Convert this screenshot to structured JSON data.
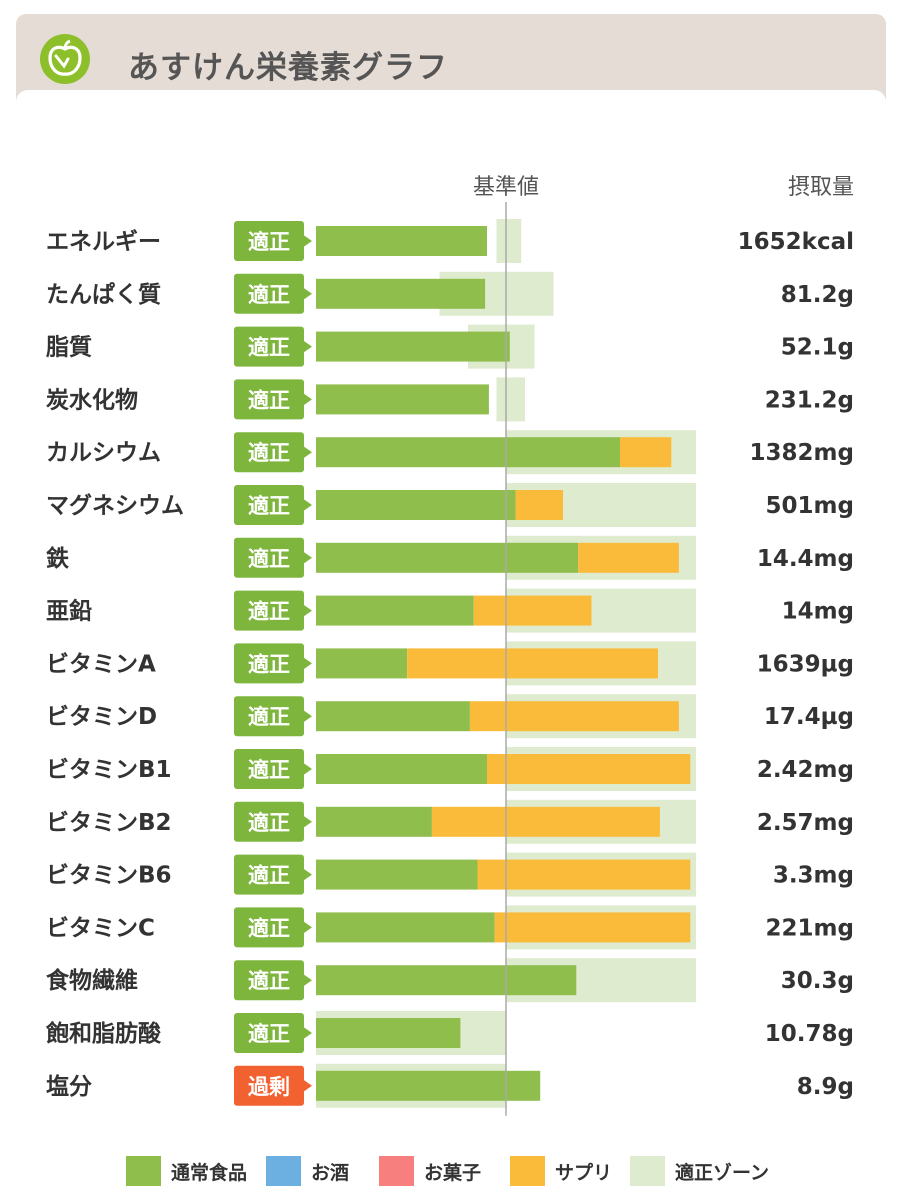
{
  "app": {
    "title": "あすけん栄養素グラフ",
    "logo_icon": "apple-scale-icon"
  },
  "chart_data": {
    "type": "bar",
    "stacked": true,
    "orientation": "horizontal",
    "reference_line_label": "基準値",
    "value_header": "摂取量",
    "categories": [
      "エネルギー",
      "たんぱく質",
      "脂質",
      "炭水化物",
      "カルシウム",
      "マグネシウム",
      "鉄",
      "亜鉛",
      "ビタミンA",
      "ビタミンD",
      "ビタミンB1",
      "ビタミンB2",
      "ビタミンB6",
      "ビタミンC",
      "食物繊維",
      "飽和脂肪酸",
      "塩分"
    ],
    "status": [
      "適正",
      "適正",
      "適正",
      "適正",
      "適正",
      "適正",
      "適正",
      "適正",
      "適正",
      "適正",
      "適正",
      "適正",
      "適正",
      "適正",
      "適正",
      "適正",
      "過剰"
    ],
    "intake": [
      "1652kcal",
      "81.2g",
      "52.1g",
      "231.2g",
      "1382mg",
      "501mg",
      "14.4mg",
      "14mg",
      "1639µg",
      "17.4µg",
      "2.42mg",
      "2.57mg",
      "3.3mg",
      "221mg",
      "30.3g",
      "10.78g",
      "8.9g"
    ],
    "percent_of_standard": {
      "series": [
        {
          "name": "通常食品",
          "values": [
            90,
            89,
            102,
            91,
            160,
            105,
            138,
            83,
            48,
            81,
            90,
            61,
            85,
            94,
            137,
            76,
            118
          ]
        },
        {
          "name": "サプリ",
          "values": [
            0,
            0,
            0,
            0,
            27,
            25,
            53,
            62,
            132,
            110,
            107,
            120,
            112,
            103,
            0,
            0,
            0
          ]
        }
      ],
      "optimal_zone": [
        [
          95,
          108
        ],
        [
          65,
          125
        ],
        [
          80,
          115
        ],
        [
          95,
          110
        ],
        [
          100,
          200
        ],
        [
          100,
          200
        ],
        [
          100,
          200
        ],
        [
          100,
          200
        ],
        [
          100,
          200
        ],
        [
          100,
          200
        ],
        [
          100,
          200
        ],
        [
          100,
          200
        ],
        [
          100,
          200
        ],
        [
          100,
          200
        ],
        [
          100,
          200
        ],
        [
          0,
          100
        ],
        [
          0,
          100
        ]
      ]
    },
    "legend": [
      {
        "name": "通常食品",
        "color": "#8fbe4c"
      },
      {
        "name": "お酒",
        "color": "#6cb0e2"
      },
      {
        "name": "お菓子",
        "color": "#f7807f"
      },
      {
        "name": "サプリ",
        "color": "#fbbb3a"
      },
      {
        "name": "適正ゾーン",
        "color": "#dfebce"
      }
    ],
    "status_colors": {
      "適正": "#7eb63d",
      "過剰": "#f26130"
    }
  }
}
